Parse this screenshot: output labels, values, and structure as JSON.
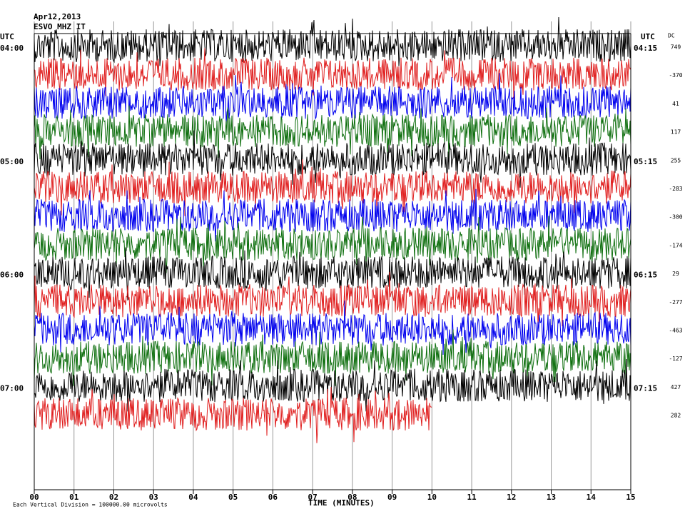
{
  "header": {
    "date": "Apr12,2013",
    "station": "ESVO MHZ IT"
  },
  "left_axis": {
    "label": "UTC",
    "times": [
      "04:00",
      "05:00",
      "06:00",
      "07:00"
    ]
  },
  "right_axis": {
    "label": "UTC",
    "times": [
      "04:15",
      "05:15",
      "06:15",
      "07:15"
    ]
  },
  "dc": {
    "label": "DC",
    "values": [
      749,
      -370,
      41,
      117,
      255,
      -283,
      -300,
      -174,
      29,
      -277,
      -463,
      -127,
      427,
      282
    ]
  },
  "x_axis": {
    "ticks": [
      "00",
      "01",
      "02",
      "03",
      "04",
      "05",
      "06",
      "07",
      "08",
      "09",
      "10",
      "11",
      "12",
      "13",
      "14",
      "15"
    ],
    "label": "TIME (MINUTES)"
  },
  "footer": "Each Vertical Division = 100000.00 microvolts"
}
